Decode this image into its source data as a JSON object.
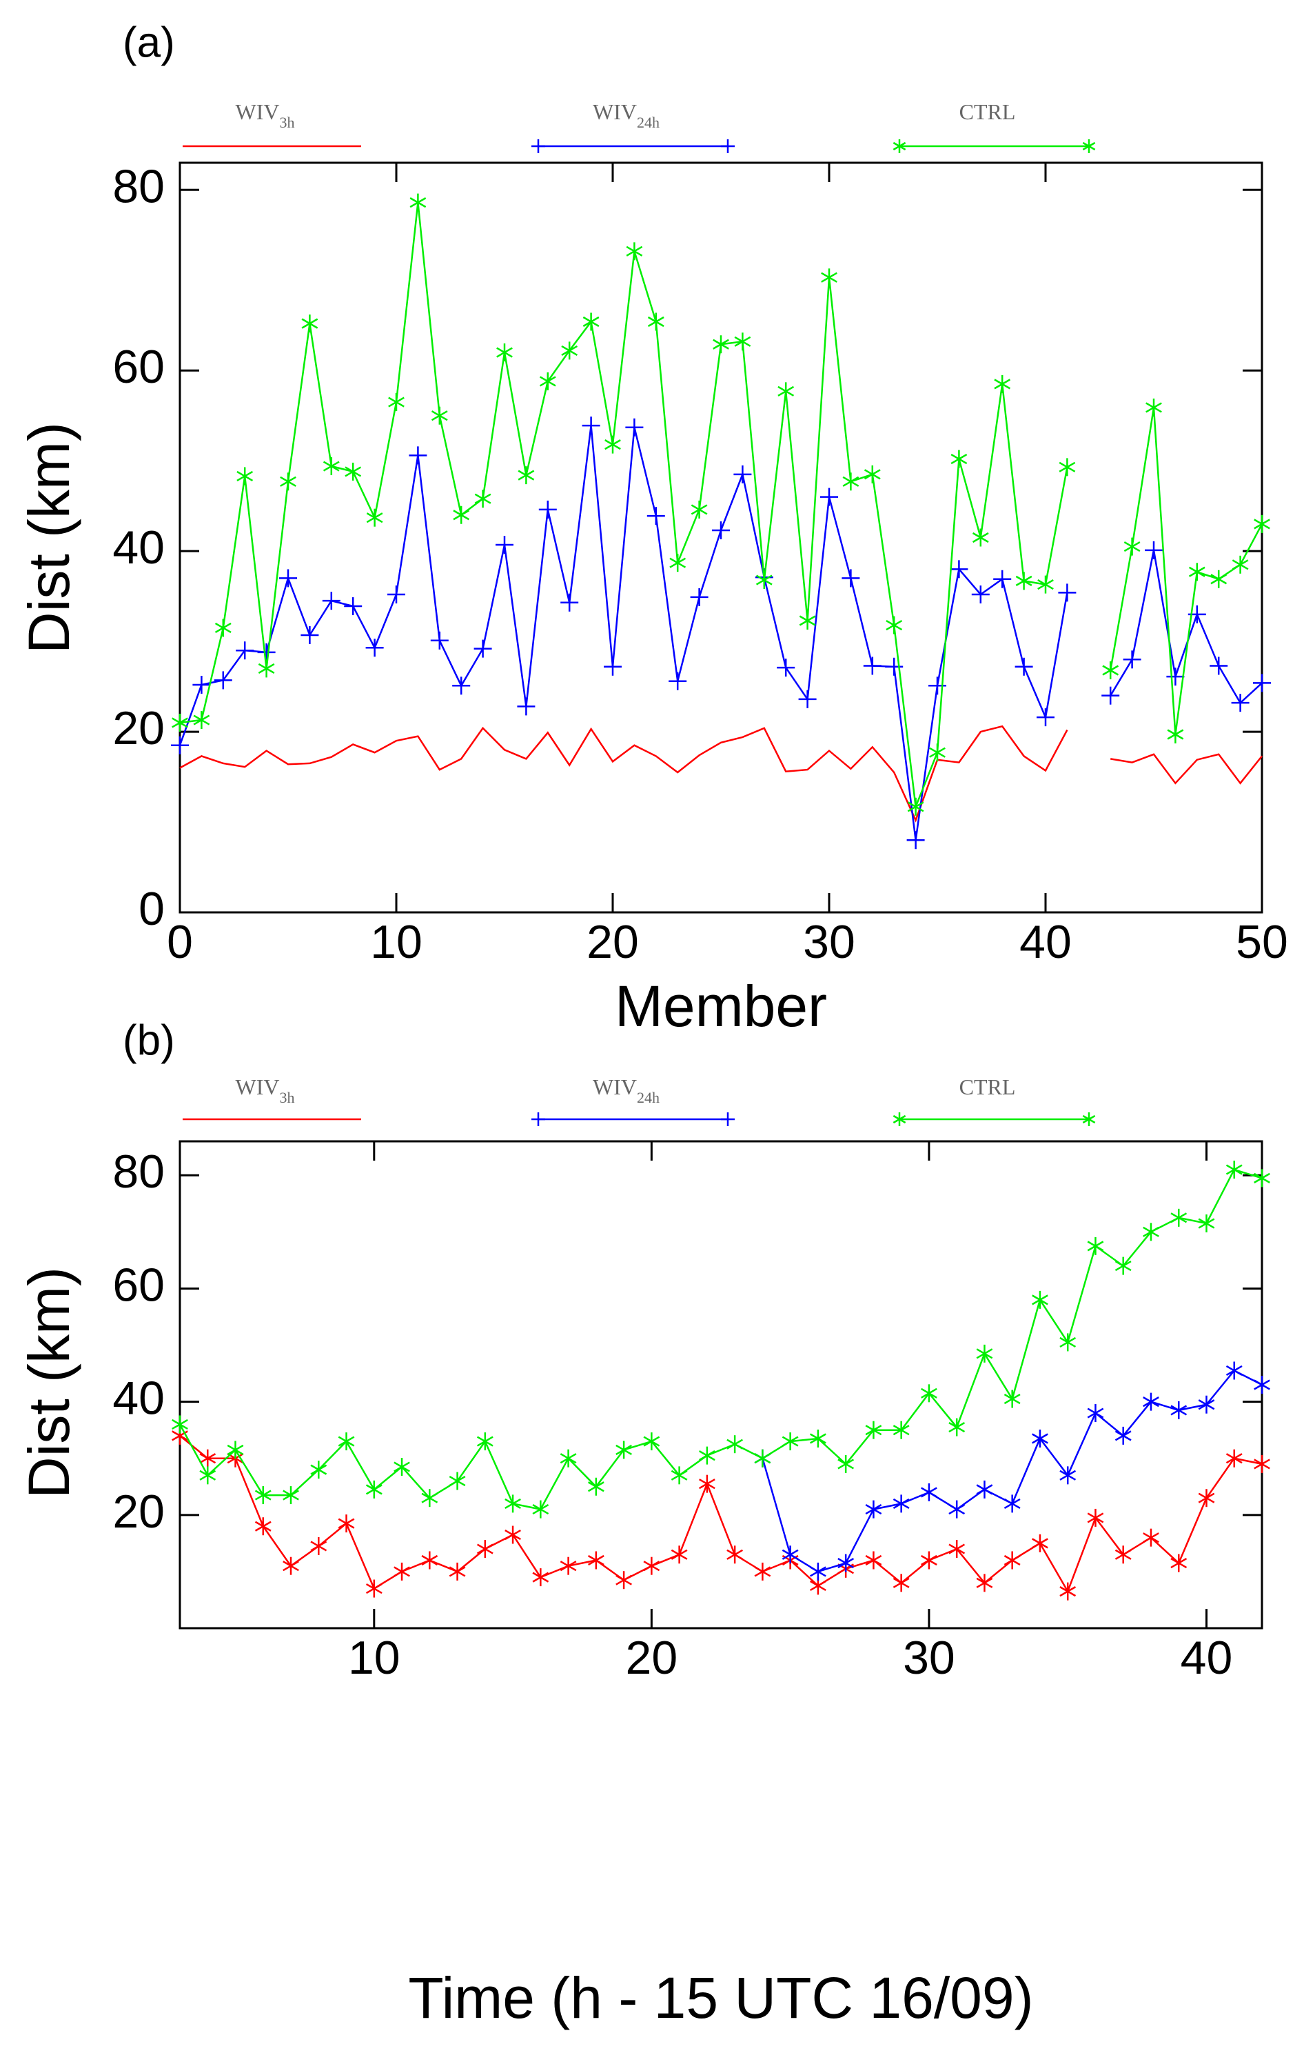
{
  "chart_data": [
    {
      "type": "line",
      "panel_label": "(a)",
      "xlabel": "Member",
      "ylabel": "Dist (km)",
      "x": [
        0,
        1,
        2,
        3,
        4,
        5,
        6,
        7,
        8,
        9,
        10,
        11,
        12,
        13,
        14,
        15,
        16,
        17,
        18,
        19,
        20,
        21,
        22,
        23,
        24,
        25,
        26,
        27,
        28,
        29,
        30,
        31,
        32,
        33,
        34,
        35,
        36,
        37,
        38,
        39,
        40,
        41,
        42,
        43,
        44,
        45,
        46,
        47,
        48,
        49,
        50
      ],
      "xlim": [
        0,
        50
      ],
      "xticks": [
        0,
        10,
        20,
        30,
        40,
        50
      ],
      "ylim": [
        0,
        83
      ],
      "yticks": [
        0,
        20,
        40,
        60,
        80
      ],
      "series": [
        {
          "name": "WIV",
          "subscript": "3h",
          "color": "#ff0000",
          "marker": "none",
          "values": [
            16,
            17.3,
            16.5,
            16.1,
            17.9,
            16.4,
            16.5,
            17.2,
            18.6,
            17.7,
            19,
            19.5,
            15.8,
            17,
            20.4,
            18,
            17,
            19.9,
            16.3,
            20.3,
            16.7,
            18.5,
            17.3,
            15.5,
            17.4,
            18.8,
            19.4,
            20.4,
            15.6,
            15.8,
            17.9,
            15.9,
            18.3,
            15.5,
            10.2,
            16.9,
            16.6,
            20,
            20.6,
            17.3,
            15.7,
            20.2,
            null,
            17,
            16.6,
            17.5,
            14.3,
            16.9,
            17.5,
            14.3,
            17.3
          ]
        },
        {
          "name": "WIV",
          "subscript": "24h",
          "color": "#0000ff",
          "marker": "plus",
          "values": [
            18.5,
            25.2,
            25.7,
            29,
            28.8,
            37,
            30.7,
            34.5,
            33.9,
            29.3,
            35.2,
            50.6,
            30.1,
            25.1,
            29.2,
            40.7,
            22.8,
            44.6,
            34.3,
            53.9,
            27.2,
            53.7,
            43.9,
            25.6,
            34.9,
            42.3,
            48.5,
            37.1,
            27.1,
            23.6,
            46,
            37,
            27.3,
            27.2,
            8,
            25.1,
            38,
            35.2,
            36.9,
            27.2,
            21.6,
            35.4,
            null,
            24,
            28,
            40.1,
            26.1,
            33,
            27.3,
            23.2,
            25.4
          ]
        },
        {
          "name": "CTRL",
          "color": "#00ee00",
          "marker": "asterisk",
          "values": [
            21,
            21.3,
            31.5,
            48.3,
            27,
            47.7,
            65.2,
            49.4,
            48.8,
            43.7,
            56.5,
            78.6,
            55,
            44,
            45.8,
            62,
            48.4,
            58.8,
            62.2,
            65.4,
            51.8,
            73.2,
            65.4,
            38.7,
            44.6,
            62.9,
            63.2,
            36.8,
            57.7,
            32.3,
            70.3,
            47.7,
            48.5,
            31.8,
            11.7,
            17.7,
            50.2,
            41.5,
            58.5,
            36.7,
            36.3,
            49.3,
            null,
            26.8,
            40.5,
            55.9,
            19.7,
            37.7,
            36.9,
            38.5,
            43
          ]
        }
      ]
    },
    {
      "type": "line",
      "panel_label": "(b)",
      "xlabel": "Time (h - 15 UTC 16/09)",
      "ylabel": "Dist (km)",
      "x": [
        3,
        4,
        5,
        6,
        7,
        8,
        9,
        10,
        11,
        12,
        13,
        14,
        15,
        16,
        17,
        18,
        19,
        20,
        21,
        22,
        23,
        24,
        25,
        26,
        27,
        28,
        29,
        30,
        31,
        32,
        33,
        34,
        35,
        36,
        37,
        38,
        39,
        40,
        41,
        42
      ],
      "xlim": [
        3,
        42
      ],
      "xticks": [
        10,
        20,
        30,
        40
      ],
      "ylim": [
        0,
        86
      ],
      "yticks": [
        20,
        40,
        60,
        80
      ],
      "series": [
        {
          "name": "WIV",
          "subscript": "3h",
          "color": "#ff0000",
          "marker": "asterisk",
          "values": [
            34,
            30,
            30,
            18,
            11,
            14.5,
            18.5,
            7,
            10,
            12,
            10,
            14,
            16.5,
            9,
            11,
            12,
            8.5,
            11,
            13,
            25.5,
            13,
            10,
            12,
            7.5,
            10.5,
            12,
            8,
            12,
            14,
            8,
            12,
            15,
            6.5,
            19.5,
            13,
            16,
            11.5,
            23,
            30,
            29
          ]
        },
        {
          "name": "WIV",
          "subscript": "24h",
          "color": "#0000ff",
          "marker": "asterisk",
          "values": [
            null,
            null,
            null,
            null,
            null,
            null,
            null,
            null,
            null,
            null,
            null,
            null,
            null,
            null,
            null,
            null,
            null,
            null,
            null,
            null,
            null,
            30,
            13,
            10,
            11.5,
            21,
            22,
            24,
            21,
            24.5,
            22,
            33.5,
            27,
            38,
            34,
            40,
            38.5,
            39.5,
            45.5,
            43
          ]
        },
        {
          "name": "CTRL",
          "color": "#00ee00",
          "marker": "asterisk",
          "values": [
            36,
            27,
            31.5,
            23.5,
            23.5,
            28,
            33,
            24.5,
            28.5,
            23,
            26,
            33,
            22,
            21,
            30,
            25,
            31.5,
            33,
            27,
            30.5,
            32.5,
            30,
            33,
            33.5,
            29,
            35,
            35,
            41.5,
            35.5,
            48.5,
            40.5,
            58,
            50.5,
            67.5,
            64,
            70,
            72.5,
            71.5,
            81,
            79.5
          ]
        }
      ]
    }
  ]
}
